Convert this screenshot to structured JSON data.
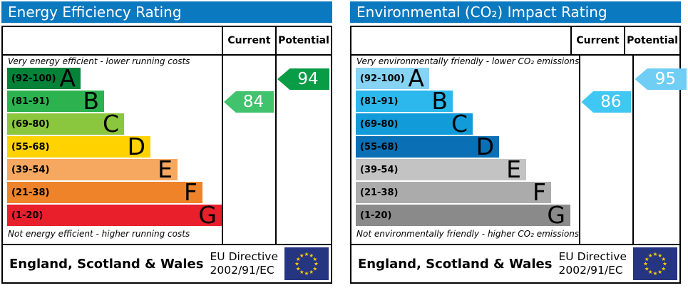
{
  "chart_data": [
    {
      "type": "bar",
      "title": "Energy Efficiency Rating",
      "columns": [
        "Current",
        "Potential"
      ],
      "top_caption": "Very energy efficient - lower running costs",
      "bottom_caption": "Not energy efficient - higher running costs",
      "categories": [
        "A",
        "B",
        "C",
        "D",
        "E",
        "F",
        "G"
      ],
      "ranges": [
        "(92-100)",
        "(81-91)",
        "(69-80)",
        "(55-68)",
        "(39-54)",
        "(21-38)",
        "(1-20)"
      ],
      "band_colors": [
        "#038238",
        "#2cb34f",
        "#8bc63f",
        "#ffd200",
        "#f6a861",
        "#ee8329",
        "#e9202c"
      ],
      "bar_widths": [
        103,
        136,
        164,
        201,
        239,
        274,
        301
      ],
      "current": {
        "value": 84,
        "band": "B",
        "color": "#40c36c"
      },
      "potential": {
        "value": 94,
        "band": "A",
        "color": "#089c47"
      },
      "footer": {
        "region": "England, Scotland & Wales",
        "directive_line1": "EU Directive",
        "directive_line2": "2002/91/EC"
      }
    },
    {
      "type": "bar",
      "title": "Environmental (CO₂) Impact Rating",
      "columns": [
        "Current",
        "Potential"
      ],
      "top_caption": "Very environmentally friendly - lower CO₂ emissions",
      "bottom_caption": "Not environmentally friendly - higher CO₂ emissions",
      "categories": [
        "A",
        "B",
        "C",
        "D",
        "E",
        "F",
        "G"
      ],
      "ranges": [
        "(92-100)",
        "(81-91)",
        "(69-80)",
        "(55-68)",
        "(39-54)",
        "(21-38)",
        "(1-20)"
      ],
      "band_colors": [
        "#86d3f3",
        "#2cb8ec",
        "#119bd8",
        "#0a6fb4",
        "#c3c3c3",
        "#ababab",
        "#8a8a8a"
      ],
      "bar_widths": [
        103,
        136,
        164,
        201,
        239,
        274,
        301
      ],
      "current": {
        "value": 86,
        "band": "B",
        "color": "#41c7f3"
      },
      "potential": {
        "value": 95,
        "band": "A",
        "color": "#70cef5"
      },
      "footer": {
        "region": "England, Scotland & Wales",
        "directive_line1": "EU Directive",
        "directive_line2": "2002/91/EC"
      }
    }
  ],
  "header_color": "#0b79c0",
  "eu_flag": {
    "background": "#26357f",
    "star_color": "#ffcc00",
    "star_count": 12
  }
}
